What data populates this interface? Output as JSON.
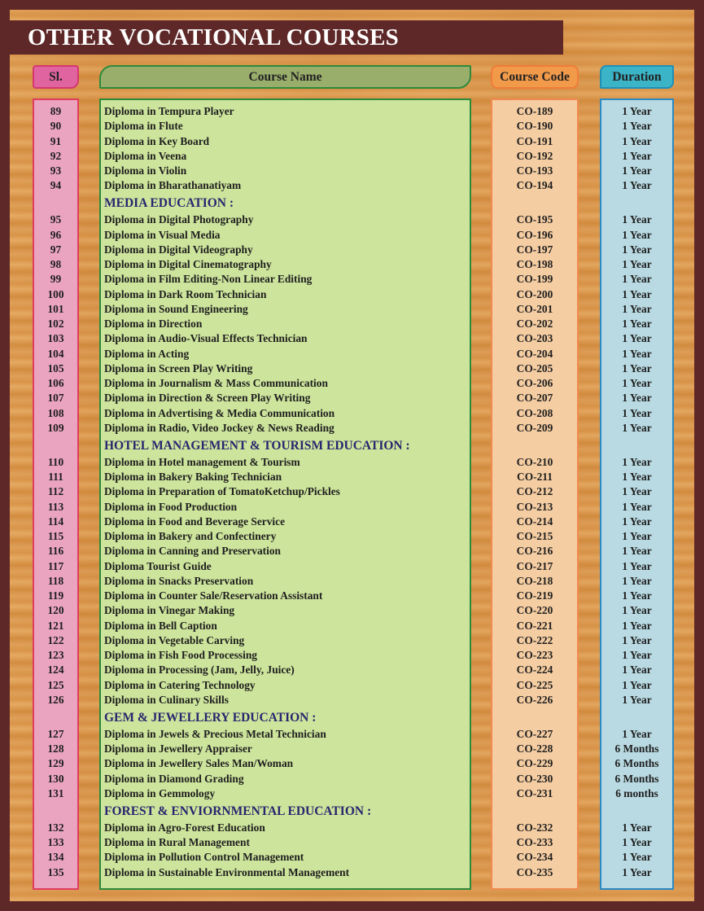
{
  "title": "OTHER VOCATIONAL COURSES",
  "headers": {
    "sl": "Sl.",
    "name": "Course Name",
    "code": "Course Code",
    "duration": "Duration"
  },
  "colors": {
    "frame": "#5e2828",
    "heading": "#27266e",
    "sl": "#eaa4c0",
    "name": "#cde49c",
    "code": "#f5cda2",
    "duration": "#b9dae2"
  },
  "rows": [
    {
      "sl": "89",
      "name": "Diploma in Tempura Player",
      "code": "CO-189",
      "duration": "1 Year"
    },
    {
      "sl": "90",
      "name": "Diploma in Flute",
      "code": "CO-190",
      "duration": "1 Year"
    },
    {
      "sl": "91",
      "name": "Diploma in Key Board",
      "code": "CO-191",
      "duration": "1 Year"
    },
    {
      "sl": "92",
      "name": "Diploma in Veena",
      "code": "CO-192",
      "duration": "1 Year"
    },
    {
      "sl": "93",
      "name": "Diploma in Violin",
      "code": "CO-193",
      "duration": "1 Year"
    },
    {
      "sl": "94",
      "name": "Diploma in Bharathanatiyam",
      "code": "CO-194",
      "duration": "1 Year"
    },
    {
      "section": "MEDIA EDUCATION :"
    },
    {
      "sl": "95",
      "name": "Diploma in Digital Photography",
      "code": "CO-195",
      "duration": "1 Year"
    },
    {
      "sl": "96",
      "name": "Diploma in Visual Media",
      "code": "CO-196",
      "duration": "1 Year"
    },
    {
      "sl": "97",
      "name": "Diploma in Digital Videography",
      "code": "CO-197",
      "duration": "1 Year"
    },
    {
      "sl": "98",
      "name": "Diploma in  Digital Cinematography",
      "code": "CO-198",
      "duration": "1 Year"
    },
    {
      "sl": "99",
      "name": "Diploma in Film Editing-Non Linear Editing",
      "code": "CO-199",
      "duration": "1 Year"
    },
    {
      "sl": "100",
      "name": "Diploma in Dark Room  Technician",
      "code": "CO-200",
      "duration": "1 Year"
    },
    {
      "sl": "101",
      "name": "Diploma in Sound Engineering",
      "code": "CO-201",
      "duration": "1 Year"
    },
    {
      "sl": "102",
      "name": "Diploma in Direction",
      "code": "CO-202",
      "duration": "1 Year"
    },
    {
      "sl": "103",
      "name": "Diploma in Audio-Visual Effects Technician",
      "code": "CO-203",
      "duration": "1 Year"
    },
    {
      "sl": "104",
      "name": "Diploma in Acting",
      "code": "CO-204",
      "duration": "1 Year"
    },
    {
      "sl": "105",
      "name": "Diploma in Screen Play Writing",
      "code": "CO-205",
      "duration": "1 Year"
    },
    {
      "sl": "106",
      "name": "Diploma in Journalism & Mass Communication",
      "code": "CO-206",
      "duration": "1 Year"
    },
    {
      "sl": "107",
      "name": "Diploma in Direction & Screen Play Writing",
      "code": "CO-207",
      "duration": "1 Year"
    },
    {
      "sl": "108",
      "name": "Diploma in Advertising & Media Communication",
      "code": "CO-208",
      "duration": "1 Year"
    },
    {
      "sl": "109",
      "name": "Diploma in Radio, Video Jockey & News Reading",
      "code": "CO-209",
      "duration": "1 Year"
    },
    {
      "section": "HOTEL MANAGEMENT & TOURISM EDUCATION :"
    },
    {
      "sl": "110",
      "name": "Diploma in Hotel management & Tourism",
      "code": "CO-210",
      "duration": "1 Year"
    },
    {
      "sl": "111",
      "name": "Diploma in Bakery Baking Technician",
      "code": "CO-211",
      "duration": "1 Year"
    },
    {
      "sl": "112",
      "name": "Diploma in Preparation of TomatoKetchup/Pickles",
      "code": "CO-212",
      "duration": "1 Year"
    },
    {
      "sl": "113",
      "name": "Diploma in Food Production",
      "code": "CO-213",
      "duration": "1 Year"
    },
    {
      "sl": "114",
      "name": "Diploma in Food and Beverage Service",
      "code": "CO-214",
      "duration": "1 Year"
    },
    {
      "sl": "115",
      "name": "Diploma in Bakery and Confectinery",
      "code": "CO-215",
      "duration": "1 Year"
    },
    {
      "sl": "116",
      "name": "Diploma in Canning and Preservation",
      "code": "CO-216",
      "duration": "1 Year"
    },
    {
      "sl": "117",
      "name": "Diploma Tourist Guide",
      "code": "CO-217",
      "duration": "1 Year"
    },
    {
      "sl": "118",
      "name": "Diploma in Snacks Preservation",
      "code": "CO-218",
      "duration": "1 Year"
    },
    {
      "sl": "119",
      "name": "Diploma in Counter Sale/Reservation Assistant",
      "code": "CO-219",
      "duration": "1 Year"
    },
    {
      "sl": "120",
      "name": "Diploma in Vinegar Making",
      "code": "CO-220",
      "duration": "1 Year"
    },
    {
      "sl": "121",
      "name": "Diploma in Bell Caption",
      "code": "CO-221",
      "duration": "1 Year"
    },
    {
      "sl": "122",
      "name": "Diploma in Vegetable Carving",
      "code": "CO-222",
      "duration": "1 Year"
    },
    {
      "sl": "123",
      "name": "Diploma in Fish Food Processing",
      "code": "CO-223",
      "duration": "1 Year"
    },
    {
      "sl": "124",
      "name": "Diploma in Processing (Jam, Jelly, Juice)",
      "code": "CO-224",
      "duration": "1 Year"
    },
    {
      "sl": "125",
      "name": "Diploma in Catering Technology",
      "code": "CO-225",
      "duration": "1 Year"
    },
    {
      "sl": "126",
      "name": "Diploma in Culinary Skills",
      "code": "CO-226",
      "duration": "1 Year"
    },
    {
      "section": "GEM & JEWELLERY EDUCATION :"
    },
    {
      "sl": "127",
      "name": "Diploma in Jewels & Precious Metal Technician",
      "code": "CO-227",
      "duration": "1 Year"
    },
    {
      "sl": "128",
      "name": "Diploma in Jewellery Appraiser",
      "code": "CO-228",
      "duration": "6 Months"
    },
    {
      "sl": "129",
      "name": "Diploma in Jewellery Sales Man/Woman",
      "code": "CO-229",
      "duration": "6 Months"
    },
    {
      "sl": "130",
      "name": "Diploma in Diamond Grading",
      "code": "CO-230",
      "duration": "6 Months"
    },
    {
      "sl": "131",
      "name": "Diploma in Gemmology",
      "code": "CO-231",
      "duration": "6 months"
    },
    {
      "section": "FOREST & ENVIORNMENTAL EDUCATION :"
    },
    {
      "sl": "132",
      "name": "Diploma in Agro-Forest Education",
      "code": "CO-232",
      "duration": "1 Year"
    },
    {
      "sl": "133",
      "name": "Diploma in Rural Management",
      "code": "CO-233",
      "duration": "1 Year"
    },
    {
      "sl": "134",
      "name": "Diploma in Pollution Control Management",
      "code": "CO-234",
      "duration": "1 Year"
    },
    {
      "sl": "135",
      "name": "Diploma in Sustainable Environmental Management",
      "code": "CO-235",
      "duration": "1 Year"
    }
  ]
}
